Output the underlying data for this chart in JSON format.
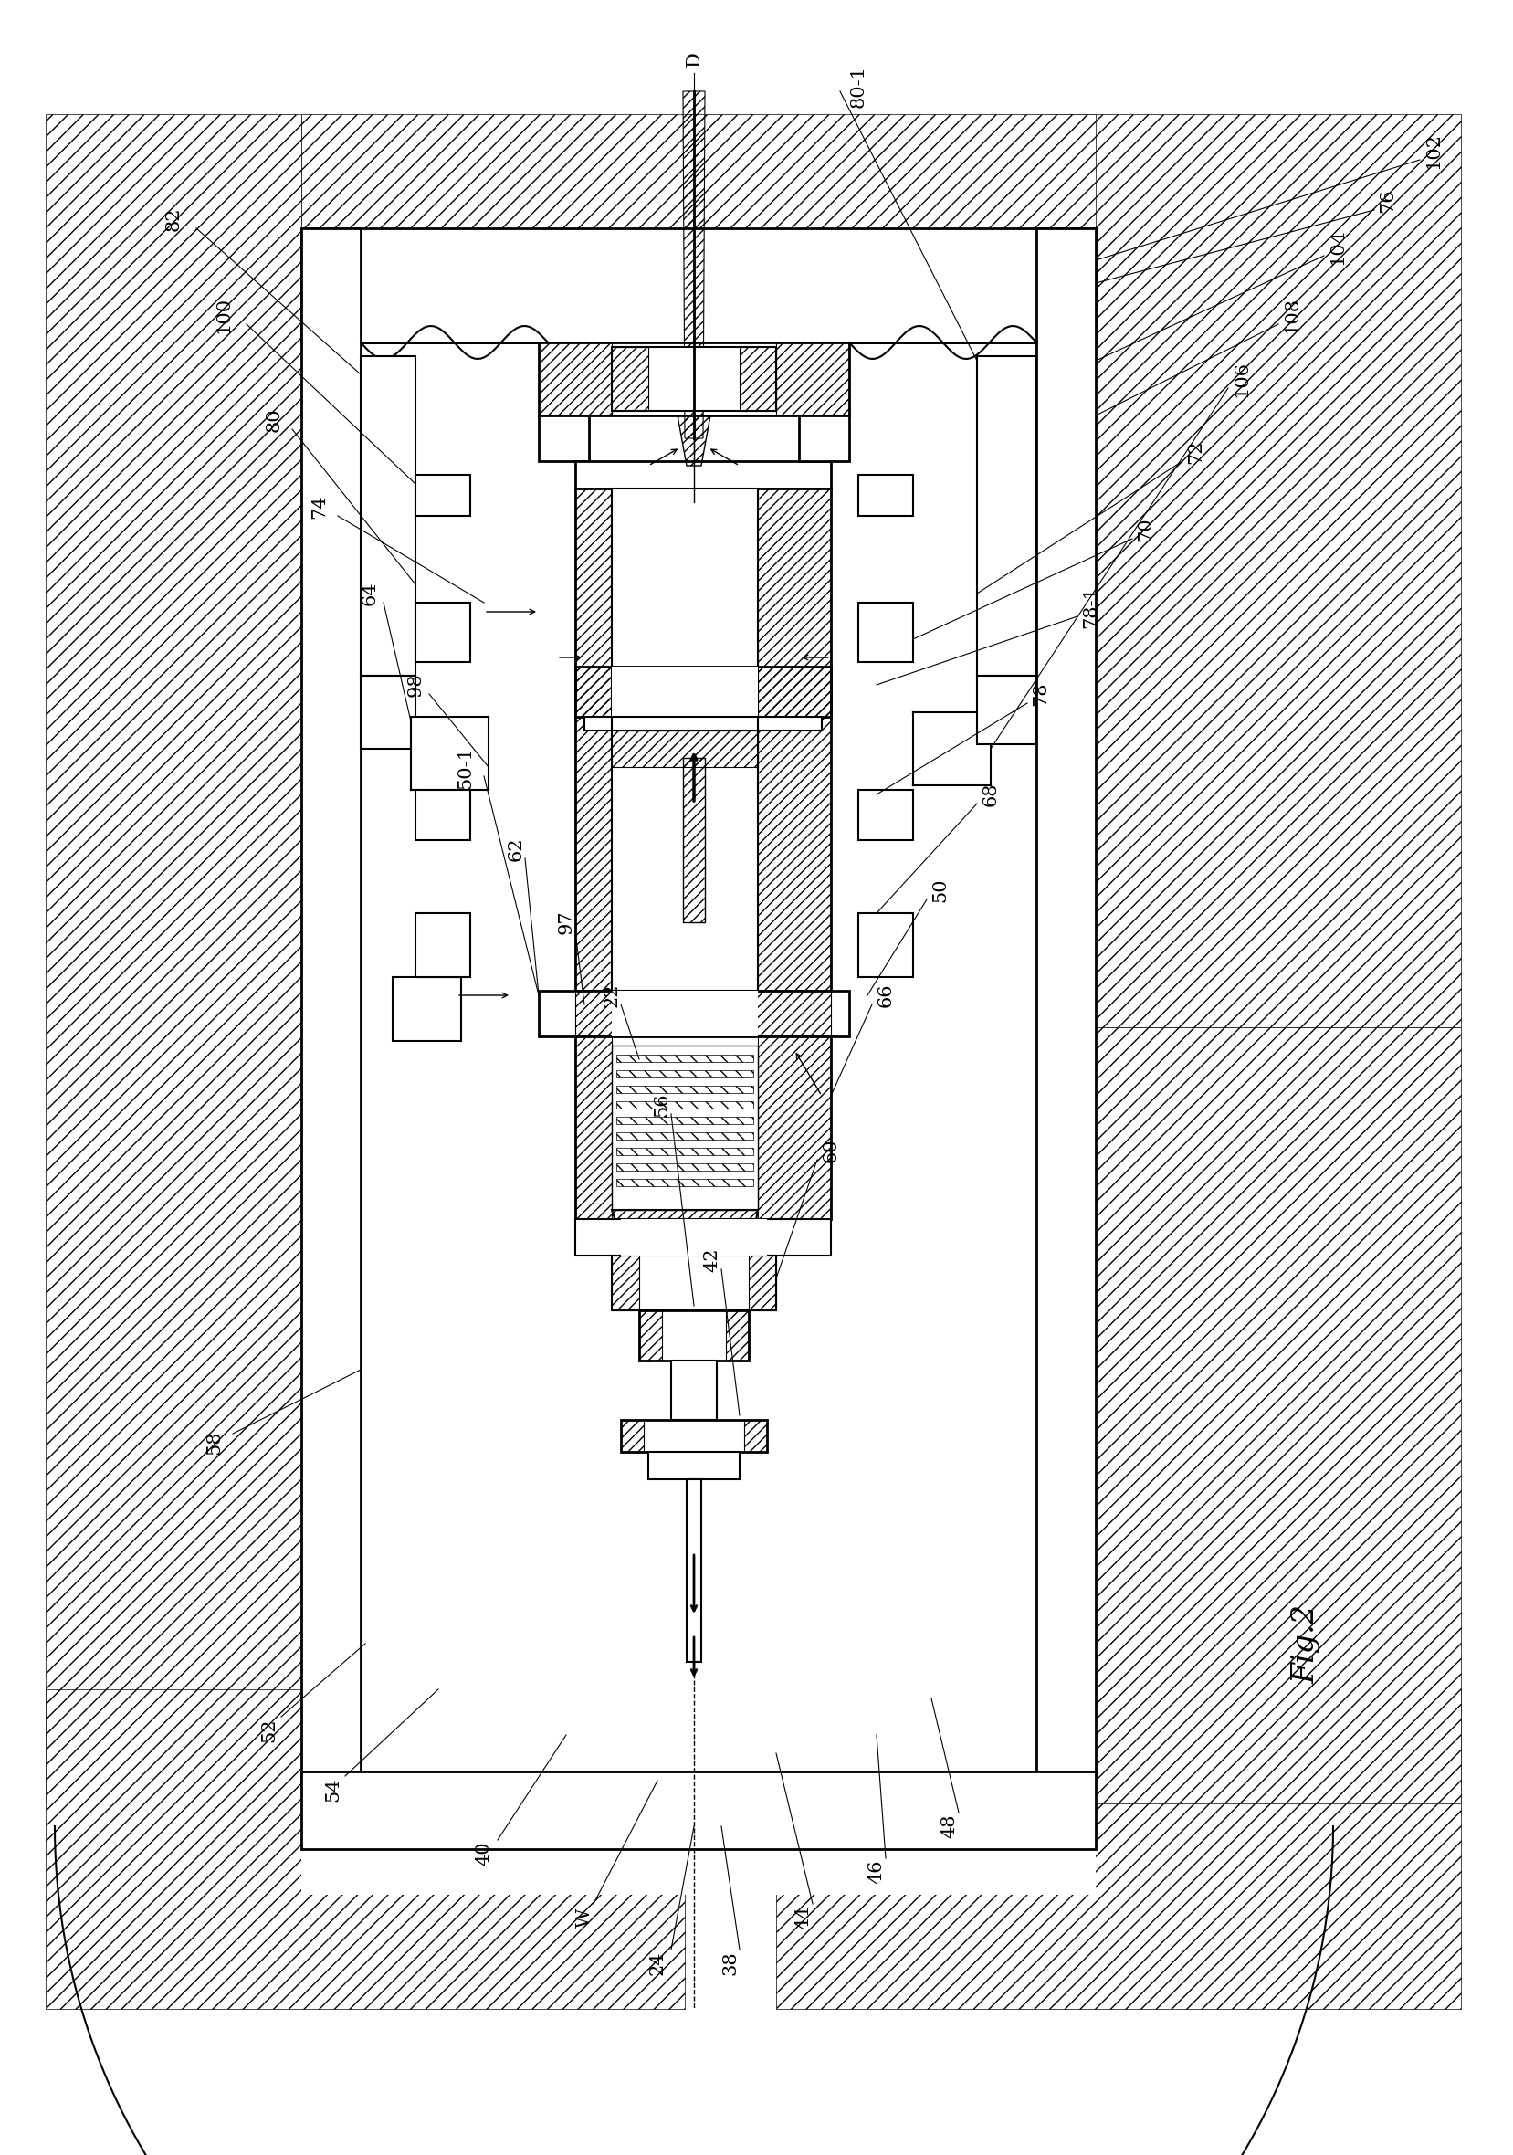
{
  "fig_width": 16.57,
  "fig_height": 23.6,
  "bg_color": "#ffffff",
  "line_color": "#000000",
  "fig_label": "Fig.2",
  "labels_left_rotated": [
    "82",
    "100",
    "80",
    "74",
    "64",
    "98",
    "50-1",
    "62",
    "97",
    "22",
    "56",
    "42",
    "58"
  ],
  "labels_bottom_rotated": [
    "52",
    "54",
    "40",
    "W",
    "24",
    "38",
    "44",
    "46",
    "48"
  ],
  "labels_right_rotated": [
    "102",
    "76",
    "104",
    "108",
    "106",
    "72",
    "70",
    "78-1",
    "78",
    "68",
    "50",
    "66",
    "60"
  ],
  "labels_top_rotated": [
    "D",
    "80-1"
  ]
}
